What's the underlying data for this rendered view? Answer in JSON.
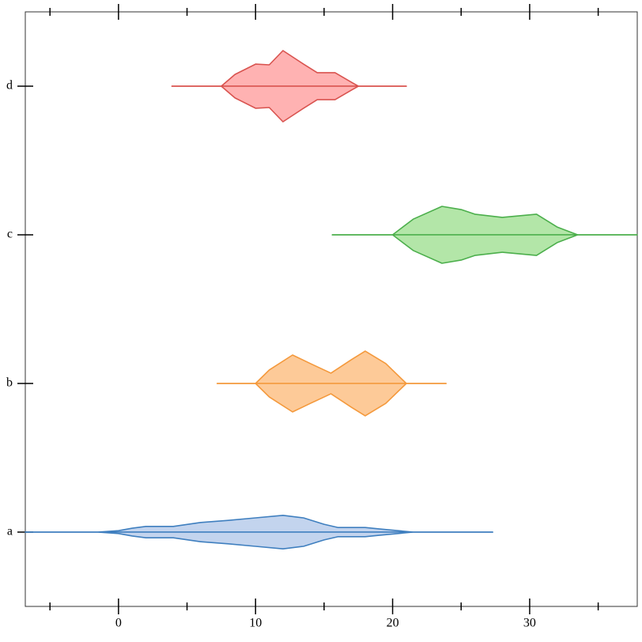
{
  "chart_data": {
    "type": "violin",
    "orientation": "horizontal",
    "categories": [
      "a",
      "b",
      "c",
      "d"
    ],
    "xlim": [
      -6.8,
      37.85
    ],
    "xticks": [
      0,
      10,
      20,
      30
    ],
    "xminorticks": [
      -5,
      5,
      15,
      25,
      35
    ],
    "violins": [
      {
        "color": "#3f7fbf",
        "fill": "#c3d4ee",
        "x": [
          -6.8,
          -1.5,
          0,
          1,
          2,
          4,
          6,
          8,
          10,
          12,
          13.5,
          15,
          16,
          18,
          19,
          21.5,
          27.3
        ],
        "density": [
          0,
          0,
          0.04,
          0.11,
          0.16,
          0.16,
          0.27,
          0.33,
          0.4,
          0.47,
          0.4,
          0.22,
          0.13,
          0.13,
          0.09,
          0,
          0
        ]
      },
      {
        "color": "#f4993c",
        "fill": "#fdca98",
        "x": [
          7.2,
          10,
          11,
          12.7,
          14,
          15.5,
          17,
          18,
          19.5,
          21,
          23.9
        ],
        "density": [
          0,
          0,
          0.38,
          0.8,
          0.56,
          0.29,
          0.67,
          0.91,
          0.56,
          0,
          0
        ]
      },
      {
        "color": "#4caf4c",
        "fill": "#b3e6a8",
        "x": [
          15.6,
          20,
          21.5,
          23.6,
          25,
          26,
          28,
          30.5,
          32,
          33.5,
          37.85
        ],
        "density": [
          0,
          0,
          0.44,
          0.8,
          0.71,
          0.58,
          0.49,
          0.58,
          0.22,
          0,
          0
        ]
      },
      {
        "color": "#d9534f",
        "fill": "#ffb2b2",
        "x": [
          3.9,
          7.5,
          8.5,
          10,
          11,
          12,
          13.5,
          14.5,
          15.8,
          17,
          17.5,
          21
        ],
        "density": [
          0,
          0,
          0.33,
          0.62,
          0.6,
          1.0,
          0.62,
          0.38,
          0.38,
          0.11,
          0,
          0
        ]
      }
    ]
  }
}
